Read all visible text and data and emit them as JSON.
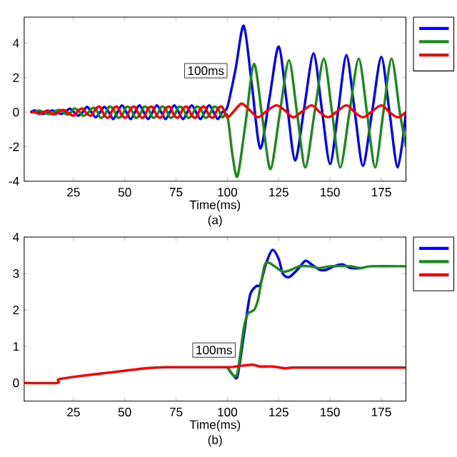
{
  "chart_data": [
    {
      "type": "line",
      "xlabel": "Time(ms)",
      "annotations": [
        {
          "text": "100ms",
          "x": 100,
          "y": 2.4
        },
        "(a)"
      ],
      "xlim": [
        1,
        187
      ],
      "ylim": [
        -4,
        5.5
      ],
      "xticks": [
        25,
        50,
        75,
        100,
        125,
        150,
        175
      ],
      "yticks": [
        -4,
        -2,
        0,
        2,
        4
      ],
      "series": [
        {
          "color": "#0000ff",
          "x": [
            4,
            6.125,
            8.25,
            10.375,
            12.5,
            14.625,
            16.75,
            18.875,
            21,
            23.125,
            25.25,
            27.375,
            29.5,
            31.625,
            33.75,
            35.875,
            38,
            40.125,
            42.25,
            44.375,
            46.5,
            48.625,
            50.75,
            52.875,
            55,
            57.125,
            59.25,
            61.375,
            63.5,
            65.625,
            67.75,
            69.875,
            72,
            74.125,
            76.25,
            78.375,
            80.5,
            82.625,
            84.75,
            86.875,
            89,
            91.125,
            93.25,
            95.375,
            97.5,
            100,
            104,
            108,
            112,
            116,
            120.5,
            125,
            129,
            133,
            137.5,
            142,
            146,
            150,
            154,
            158,
            162,
            166,
            170.5,
            175,
            179,
            183,
            187
          ],
          "values": [
            0,
            0.1,
            0,
            -0.1,
            0,
            0.1,
            0,
            -0.1,
            0,
            0.2,
            0,
            -0.2,
            0,
            0.3,
            0,
            -0.3,
            0,
            0.3,
            0,
            -0.4,
            0,
            0.4,
            0,
            -0.4,
            0,
            0.4,
            0,
            -0.4,
            0,
            0.4,
            0,
            -0.4,
            0,
            0.4,
            0,
            -0.4,
            0,
            0.4,
            0,
            -0.4,
            0,
            0.4,
            0,
            -0.4,
            0,
            0.3,
            2.5,
            5.0,
            1.5,
            -2.1,
            0.8,
            3.8,
            0.5,
            -2.8,
            0.3,
            3.4,
            0.2,
            -3.0,
            0.1,
            3.3,
            0.1,
            -3.1,
            0,
            3.2,
            0,
            -3.2,
            0
          ]
        },
        {
          "color": "#1a8a1a",
          "x": [
            4,
            6.125,
            8.25,
            10.375,
            12.5,
            14.625,
            16.75,
            18.875,
            21,
            23.125,
            25.25,
            27.375,
            29.5,
            31.625,
            33.75,
            35.875,
            38,
            40.125,
            42.25,
            44.375,
            46.5,
            48.625,
            50.75,
            52.875,
            55,
            57.125,
            59.25,
            61.375,
            63.5,
            65.625,
            67.75,
            69.875,
            72,
            74.125,
            76.25,
            78.375,
            80.5,
            82.625,
            84.75,
            86.875,
            89,
            91.125,
            93.25,
            95.375,
            97.5,
            100,
            102.5,
            105,
            109,
            113,
            117,
            121,
            125.5,
            130,
            134,
            138,
            142.5,
            147,
            151,
            155,
            159.5,
            164,
            168,
            172,
            176,
            180,
            184,
            187
          ],
          "values": [
            0,
            0,
            0.1,
            0,
            -0.1,
            -0.1,
            0.1,
            0.1,
            -0.1,
            -0.1,
            0.2,
            0.1,
            -0.2,
            -0.1,
            0.2,
            0.2,
            -0.3,
            -0.2,
            0.3,
            0.2,
            -0.3,
            -0.2,
            0.3,
            0.2,
            -0.3,
            -0.2,
            0.3,
            0.2,
            -0.3,
            -0.2,
            0.3,
            0.2,
            -0.3,
            -0.2,
            0.3,
            0.2,
            -0.3,
            -0.2,
            0.3,
            0.2,
            -0.3,
            -0.2,
            0.3,
            0.2,
            -0.3,
            -0.2,
            -2.5,
            -3.7,
            -0.5,
            2.8,
            -0.3,
            -3.3,
            -0.1,
            3.0,
            -0.1,
            -3.2,
            0,
            3.1,
            0,
            -3.2,
            0,
            3.1,
            0,
            -3.2,
            0,
            3.1,
            0,
            -2.0
          ]
        },
        {
          "color": "#ff0000",
          "x": [
            4,
            6.125,
            8.25,
            10.375,
            12.5,
            14.625,
            16.75,
            18.875,
            21,
            23.125,
            25.25,
            27.375,
            29.5,
            31.625,
            33.75,
            35.875,
            38,
            40.125,
            42.25,
            44.375,
            46.5,
            48.625,
            50.75,
            52.875,
            55,
            57.125,
            59.25,
            61.375,
            63.5,
            65.625,
            67.75,
            69.875,
            72,
            74.125,
            76.25,
            78.375,
            80.5,
            82.625,
            84.75,
            86.875,
            89,
            91.125,
            93.25,
            95.375,
            97.5,
            100,
            103.5,
            107,
            111,
            115,
            119.5,
            124,
            128,
            132,
            136,
            141,
            145,
            149,
            153,
            158,
            162,
            166,
            170,
            175,
            179,
            183,
            187
          ],
          "values": [
            0,
            0,
            -0.1,
            0,
            0.1,
            -0.1,
            -0.1,
            0.1,
            0.1,
            -0.1,
            -0.2,
            0.1,
            0.2,
            -0.1,
            -0.2,
            0.2,
            0.3,
            -0.2,
            -0.3,
            0.2,
            0.3,
            -0.2,
            -0.3,
            0.2,
            0.3,
            -0.2,
            -0.3,
            0.2,
            0.3,
            -0.2,
            -0.3,
            0.2,
            0.3,
            -0.2,
            -0.3,
            0.2,
            0.3,
            -0.2,
            -0.3,
            0.2,
            0.3,
            -0.2,
            -0.3,
            0.2,
            0.3,
            -0.3,
            0.1,
            0.5,
            0.1,
            -0.3,
            0.1,
            0.4,
            0.1,
            -0.3,
            0,
            0.4,
            0,
            -0.3,
            0,
            0.4,
            0,
            -0.3,
            0,
            0.4,
            0,
            -0.3,
            0
          ]
        }
      ]
    },
    {
      "type": "line",
      "xlabel": "Time(ms)",
      "annotations": [
        {
          "text": "100ms",
          "x": 104,
          "y": 0.9
        },
        "(b)"
      ],
      "xlim": [
        1,
        187
      ],
      "ylim": [
        -0.5,
        4
      ],
      "xticks": [
        25,
        50,
        75,
        100,
        125,
        150,
        175
      ],
      "yticks": [
        0,
        1,
        2,
        3,
        4
      ],
      "series": [
        {
          "color": "#0000ff",
          "x": [
            100,
            103,
            105,
            108,
            111,
            114,
            116,
            119,
            122,
            125,
            127,
            130,
            134,
            138,
            141,
            145,
            148,
            152,
            156,
            160,
            165
          ],
          "values": [
            0.43,
            0.2,
            0.2,
            1.3,
            2.4,
            2.65,
            2.7,
            3.3,
            3.65,
            3.4,
            3.0,
            2.9,
            3.1,
            3.35,
            3.25,
            3.1,
            3.1,
            3.2,
            3.25,
            3.15,
            3.15
          ]
        },
        {
          "color": "#1a8a1a",
          "x": [
            100,
            103,
            105,
            108,
            110,
            113,
            115,
            118,
            120,
            123,
            127,
            131,
            135,
            140,
            145,
            150,
            160,
            165,
            170,
            187
          ],
          "values": [
            0.43,
            0.2,
            0.3,
            1.5,
            1.9,
            2.0,
            2.3,
            3.2,
            3.3,
            3.2,
            3.05,
            3.1,
            3.2,
            3.2,
            3.15,
            3.2,
            3.2,
            3.15,
            3.2,
            3.2
          ]
        },
        {
          "color": "#ff0000",
          "x": [
            1,
            17,
            18,
            30,
            45,
            60,
            70,
            100,
            104,
            112,
            116,
            122,
            128,
            132,
            150,
            187
          ],
          "values": [
            0,
            0,
            0.1,
            0.2,
            0.3,
            0.4,
            0.43,
            0.43,
            0.45,
            0.5,
            0.45,
            0.45,
            0.4,
            0.42,
            0.42,
            0.42
          ]
        }
      ]
    }
  ]
}
